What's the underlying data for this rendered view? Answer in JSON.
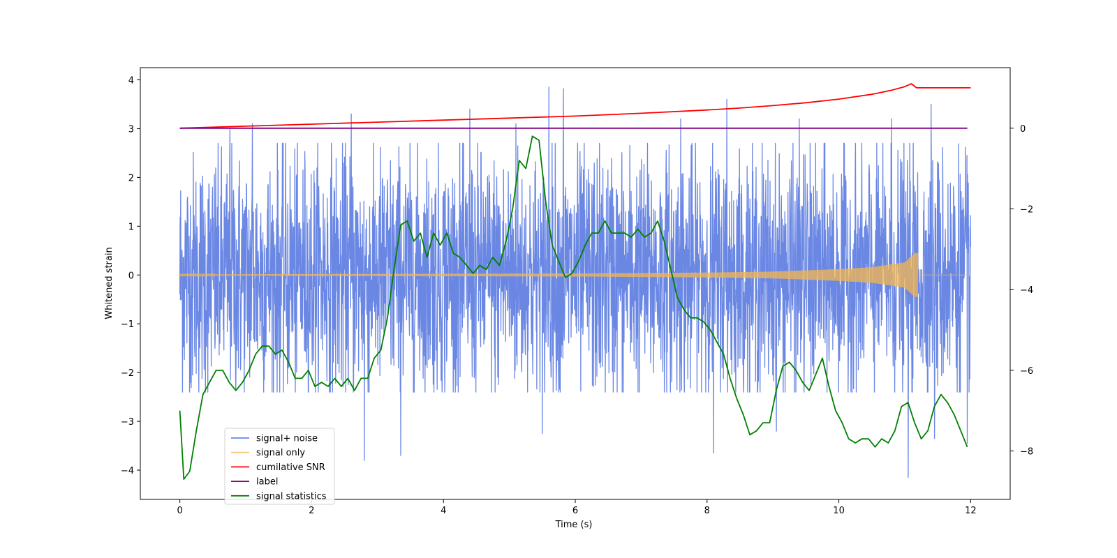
{
  "chart_data": {
    "type": "line",
    "title": "",
    "xlabel": "Time (s)",
    "ylabel": "Whitened strain",
    "xlim": [
      -0.6,
      12.6
    ],
    "ylim": [
      -4.6,
      4.25
    ],
    "y2lim": [
      -9.2,
      1.5
    ],
    "xticks": [
      0,
      2,
      4,
      6,
      8,
      10,
      12
    ],
    "xtick_labels": [
      "0",
      "2",
      "4",
      "6",
      "8",
      "10",
      "12"
    ],
    "yticks": [
      -4,
      -3,
      -2,
      -1,
      0,
      1,
      2,
      3,
      4
    ],
    "ytick_labels": [
      "−4",
      "−3",
      "−2",
      "−1",
      "0",
      "1",
      "2",
      "3",
      "4"
    ],
    "y2ticks": [
      -8,
      -6,
      -4,
      -2,
      0
    ],
    "y2tick_labels": [
      "−8",
      "−6",
      "−4",
      "−2",
      "0"
    ],
    "grid": false,
    "legend_position": "lower-left",
    "series": [
      {
        "name": "signal+ noise",
        "axis": "left",
        "color": "#6a87e4",
        "description_values": {
          "x_range": [
            0,
            12
          ],
          "typical_min": -1.8,
          "typical_max": 2.2,
          "peaks_high": [
            [
              0.76,
              3.0
            ],
            [
              1.1,
              3.1
            ],
            [
              2.6,
              3.3
            ],
            [
              4.4,
              3.4
            ],
            [
              5.1,
              3.1
            ],
            [
              5.6,
              3.85
            ],
            [
              5.82,
              3.82
            ],
            [
              7.6,
              3.2
            ],
            [
              8.3,
              3.6
            ],
            [
              9.4,
              3.2
            ],
            [
              10.8,
              3.2
            ],
            [
              11.4,
              3.5
            ]
          ],
          "peaks_low": [
            [
              2.8,
              -3.8
            ],
            [
              3.35,
              -3.7
            ],
            [
              5.5,
              -3.25
            ],
            [
              8.1,
              -3.65
            ],
            [
              9.05,
              -3.2
            ],
            [
              11.05,
              -4.15
            ],
            [
              11.45,
              -3.35
            ],
            [
              11.95,
              -3.45
            ]
          ]
        }
      },
      {
        "name": "signal only",
        "axis": "left",
        "color": "#f5b64d",
        "description_values": {
          "x": [
            0,
            2,
            4,
            6,
            7,
            8,
            9,
            10,
            10.5,
            11,
            11.15,
            11.2
          ],
          "amplitude": [
            0.01,
            0.02,
            0.025,
            0.03,
            0.04,
            0.05,
            0.07,
            0.12,
            0.16,
            0.26,
            0.45,
            0.45
          ]
        }
      },
      {
        "name": "cumilative SNR",
        "axis": "right",
        "color": "#ff0000",
        "x": [
          0,
          1,
          2,
          3,
          4,
          5,
          6,
          7,
          8,
          8.5,
          9,
          9.5,
          10,
          10.5,
          10.8,
          11,
          11.1,
          11.18,
          11.2,
          12
        ],
        "y": [
          0.0,
          0.05,
          0.1,
          0.15,
          0.2,
          0.25,
          0.3,
          0.37,
          0.45,
          0.5,
          0.56,
          0.63,
          0.72,
          0.84,
          0.94,
          1.03,
          1.1,
          1.0,
          1.0,
          1.0
        ]
      },
      {
        "name": "label",
        "axis": "right",
        "color": "#800080",
        "x": [
          0,
          11.95
        ],
        "y": [
          0,
          0
        ]
      },
      {
        "name": "signal statistics",
        "axis": "right",
        "color": "#008000",
        "x": [
          0.0,
          0.06,
          0.15,
          0.25,
          0.35,
          0.45,
          0.55,
          0.65,
          0.75,
          0.85,
          0.95,
          1.05,
          1.15,
          1.25,
          1.35,
          1.45,
          1.55,
          1.65,
          1.75,
          1.85,
          1.95,
          2.05,
          2.15,
          2.25,
          2.35,
          2.45,
          2.55,
          2.65,
          2.75,
          2.85,
          2.95,
          3.05,
          3.15,
          3.25,
          3.35,
          3.45,
          3.55,
          3.65,
          3.75,
          3.85,
          3.95,
          4.05,
          4.15,
          4.25,
          4.35,
          4.45,
          4.55,
          4.65,
          4.75,
          4.85,
          4.95,
          5.05,
          5.15,
          5.25,
          5.35,
          5.45,
          5.55,
          5.65,
          5.75,
          5.85,
          5.95,
          6.05,
          6.15,
          6.25,
          6.35,
          6.45,
          6.55,
          6.65,
          6.75,
          6.85,
          6.95,
          7.05,
          7.15,
          7.25,
          7.35,
          7.45,
          7.55,
          7.65,
          7.75,
          7.85,
          7.95,
          8.05,
          8.15,
          8.25,
          8.35,
          8.45,
          8.55,
          8.65,
          8.75,
          8.85,
          8.95,
          9.05,
          9.15,
          9.25,
          9.35,
          9.45,
          9.55,
          9.65,
          9.75,
          9.85,
          9.95,
          10.05,
          10.15,
          10.25,
          10.35,
          10.45,
          10.55,
          10.65,
          10.75,
          10.85,
          10.95,
          11.05,
          11.15,
          11.25,
          11.35,
          11.45,
          11.55,
          11.65,
          11.75,
          11.85,
          11.95
        ],
        "y": [
          -7.0,
          -8.7,
          -8.5,
          -7.5,
          -6.6,
          -6.3,
          -6.0,
          -6.0,
          -6.3,
          -6.5,
          -6.3,
          -6.0,
          -5.6,
          -5.4,
          -5.4,
          -5.6,
          -5.5,
          -5.8,
          -6.2,
          -6.2,
          -6.0,
          -6.4,
          -6.3,
          -6.4,
          -6.2,
          -6.4,
          -6.2,
          -6.5,
          -6.2,
          -6.2,
          -5.7,
          -5.5,
          -4.7,
          -3.5,
          -2.4,
          -2.3,
          -2.8,
          -2.6,
          -3.2,
          -2.6,
          -2.9,
          -2.6,
          -3.1,
          -3.2,
          -3.4,
          -3.6,
          -3.4,
          -3.5,
          -3.2,
          -3.4,
          -2.8,
          -2.0,
          -0.8,
          -1.0,
          -0.2,
          -0.3,
          -1.8,
          -2.9,
          -3.3,
          -3.7,
          -3.6,
          -3.3,
          -2.9,
          -2.6,
          -2.6,
          -2.3,
          -2.6,
          -2.6,
          -2.6,
          -2.7,
          -2.5,
          -2.7,
          -2.6,
          -2.3,
          -2.8,
          -3.5,
          -4.2,
          -4.5,
          -4.7,
          -4.7,
          -4.8,
          -5.0,
          -5.3,
          -5.6,
          -6.2,
          -6.7,
          -7.1,
          -7.6,
          -7.5,
          -7.3,
          -7.3,
          -6.5,
          -5.9,
          -5.8,
          -6.0,
          -6.3,
          -6.5,
          -6.1,
          -5.7,
          -6.4,
          -7.0,
          -7.3,
          -7.7,
          -7.8,
          -7.7,
          -7.7,
          -7.9,
          -7.7,
          -7.8,
          -7.5,
          -6.9,
          -6.8,
          -7.3,
          -7.7,
          -7.5,
          -6.9,
          -6.6,
          -6.8,
          -7.1,
          -7.5,
          -7.9
        ]
      }
    ]
  }
}
